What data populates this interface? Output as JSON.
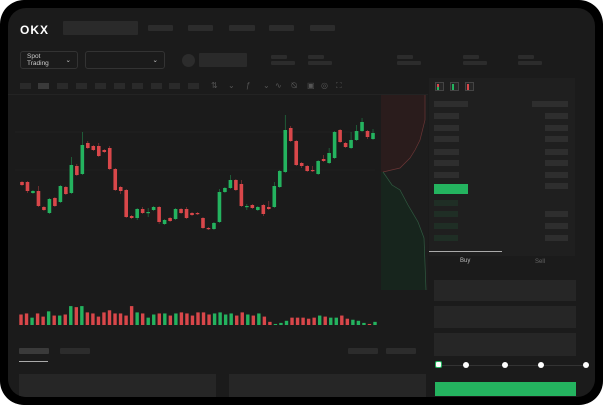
{
  "header": {
    "logo": "OKX",
    "market_selector": "Spot Trading"
  },
  "orderbook": {
    "view_icons": [
      "orderbook-both-icon",
      "orderbook-buy-icon",
      "orderbook-sell-icon"
    ]
  },
  "trade": {
    "tabs": [
      {
        "label": "Buy",
        "active": true
      },
      {
        "label": "Sell",
        "active": false
      }
    ],
    "slider_value": 0
  },
  "colors": {
    "up": "#24b35f",
    "down": "#d9474a",
    "accent": "#24b35f"
  },
  "chart_data": {
    "type": "candlestick",
    "ohlc": [
      [
        68,
        69,
        64,
        65
      ],
      [
        68,
        69,
        57,
        59
      ],
      [
        57,
        60,
        56,
        59
      ],
      [
        59,
        64,
        43,
        44
      ],
      [
        43,
        44,
        39,
        40
      ],
      [
        37,
        52,
        36,
        51
      ],
      [
        52,
        53,
        43,
        44
      ],
      [
        48,
        65,
        47,
        64
      ],
      [
        63,
        64,
        55,
        56
      ],
      [
        57,
        93,
        56,
        85
      ],
      [
        84,
        86,
        74,
        75
      ],
      [
        76,
        118,
        75,
        105
      ],
      [
        107,
        109,
        101,
        102
      ],
      [
        104,
        105,
        99,
        100
      ],
      [
        104,
        107,
        93,
        94
      ],
      [
        100,
        101,
        97,
        98
      ],
      [
        102,
        104,
        80,
        81
      ],
      [
        81,
        82,
        59,
        60
      ],
      [
        63,
        64,
        56,
        59
      ],
      [
        60,
        61,
        32,
        33
      ],
      [
        34,
        35,
        31,
        32
      ],
      [
        32,
        42,
        30,
        41
      ],
      [
        41,
        43,
        36,
        37
      ],
      [
        37,
        42,
        33,
        38
      ],
      [
        40,
        44,
        39,
        43
      ],
      [
        43,
        44,
        26,
        28
      ],
      [
        26,
        31,
        25,
        30
      ],
      [
        32,
        33,
        28,
        29
      ],
      [
        31,
        42,
        30,
        41
      ],
      [
        41,
        42,
        36,
        37
      ],
      [
        41,
        43,
        31,
        32
      ],
      [
        37,
        38,
        34,
        35
      ],
      [
        37,
        38,
        35,
        36
      ],
      [
        32,
        33,
        21,
        22
      ],
      [
        22,
        23,
        20,
        21
      ],
      [
        21,
        28,
        20,
        27
      ],
      [
        28,
        61,
        27,
        58
      ],
      [
        58,
        63,
        57,
        62
      ],
      [
        62,
        75,
        61,
        70
      ],
      [
        70,
        71,
        59,
        60
      ],
      [
        66,
        70,
        43,
        44
      ],
      [
        43,
        46,
        40,
        44
      ],
      [
        45,
        46,
        41,
        42
      ],
      [
        40,
        44,
        39,
        43
      ],
      [
        45,
        46,
        34,
        36
      ],
      [
        43,
        49,
        40,
        41
      ],
      [
        43,
        68,
        42,
        64
      ],
      [
        63,
        80,
        62,
        79
      ],
      [
        78,
        135,
        77,
        120
      ],
      [
        122,
        124,
        108,
        109
      ],
      [
        109,
        110,
        84,
        85
      ],
      [
        87,
        88,
        82,
        84
      ],
      [
        84,
        85,
        78,
        79
      ],
      [
        80,
        84,
        78,
        79
      ],
      [
        76,
        90,
        75,
        89
      ],
      [
        91,
        95,
        88,
        89
      ],
      [
        87,
        102,
        86,
        97
      ],
      [
        92,
        119,
        91,
        118
      ],
      [
        120,
        121,
        107,
        108
      ],
      [
        107,
        108,
        102,
        103
      ],
      [
        102,
        118,
        101,
        110
      ],
      [
        110,
        125,
        109,
        119
      ],
      [
        119,
        132,
        118,
        128
      ],
      [
        119,
        120,
        111,
        113
      ],
      [
        111,
        121,
        110,
        117
      ]
    ],
    "volume": [
      10,
      11,
      7,
      11,
      8,
      13,
      9,
      9,
      10,
      18,
      17,
      18,
      12,
      11,
      8,
      12,
      14,
      11,
      11,
      9,
      18,
      12,
      11,
      7,
      10,
      11,
      11,
      9,
      11,
      12,
      11,
      9,
      12,
      12,
      10,
      11,
      12,
      10,
      11,
      9,
      12,
      10,
      9,
      11,
      8,
      3,
      1,
      2,
      4,
      7,
      7,
      7,
      6,
      7,
      9,
      8,
      7,
      7,
      9,
      6,
      5,
      4,
      2,
      1,
      3
    ]
  }
}
